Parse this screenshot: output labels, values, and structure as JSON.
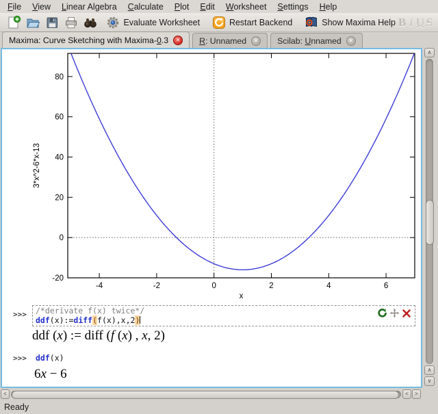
{
  "menu": {
    "items": [
      {
        "label": "File",
        "u": 0
      },
      {
        "label": "View",
        "u": 0
      },
      {
        "label": "Linear Algebra",
        "u": 0
      },
      {
        "label": "Calculate",
        "u": 0
      },
      {
        "label": "Plot",
        "u": 0
      },
      {
        "label": "Edit",
        "u": 0
      },
      {
        "label": "Worksheet",
        "u": 0
      },
      {
        "label": "Settings",
        "u": 0
      },
      {
        "label": "Help",
        "u": 0
      }
    ]
  },
  "toolbar": {
    "icon_buttons": [
      {
        "name": "new-worksheet-button",
        "icon": "new-document-icon"
      },
      {
        "name": "open-button",
        "icon": "open-folder-icon"
      },
      {
        "name": "save-button",
        "icon": "floppy-disk-icon"
      },
      {
        "name": "print-button",
        "icon": "printer-icon"
      },
      {
        "name": "find-button",
        "icon": "binoculars-icon"
      }
    ],
    "evaluate_label": "Evaluate Worksheet",
    "restart_label": "Restart Backend",
    "help_label": "Show Maxima Help",
    "format_buttons": [
      {
        "name": "bold-button",
        "label": "B"
      },
      {
        "name": "italic-button",
        "label": "i"
      },
      {
        "name": "underline-button",
        "label": "U"
      },
      {
        "name": "strikethrough-button",
        "label": "S"
      }
    ]
  },
  "tabs": [
    {
      "label": "Maxima: Curve Sketching with Maxima-0.3",
      "u": 36,
      "active": true
    },
    {
      "label": "R: Unnamed",
      "u": 0,
      "active": false
    },
    {
      "label": "Scilab: Unnamed",
      "u": 8,
      "active": false
    }
  ],
  "icons": {
    "close_glyph": "✕",
    "scroll_up": "∧",
    "scroll_down": "∨",
    "scroll_left": "<",
    "scroll_right": ">"
  },
  "worksheet": {
    "entry1": {
      "prompt": ">>>",
      "comment": "/*derivate f(x) twice*/",
      "code": [
        {
          "t": "ddf",
          "s": "kw"
        },
        {
          "t": "(x):=",
          "s": "pl"
        },
        {
          "t": "diff",
          "s": "kw"
        },
        {
          "t": "(",
          "s": "m"
        },
        {
          "t": "f(x),x,2",
          "s": "pl"
        },
        {
          "t": ")",
          "s": "m"
        }
      ]
    },
    "result1": [
      {
        "t": "ddf ("
      },
      {
        "t": "x",
        "i": 1
      },
      {
        "t": ") := diff ("
      },
      {
        "t": "f",
        "i": 1
      },
      {
        "t": " ("
      },
      {
        "t": "x",
        "i": 1
      },
      {
        "t": ") , "
      },
      {
        "t": "x",
        "i": 1
      },
      {
        "t": ", 2)"
      }
    ],
    "entry2": {
      "prompt": ">>>",
      "code": [
        {
          "t": "ddf",
          "s": "kw"
        },
        {
          "t": "(x)",
          "s": "pl"
        }
      ]
    },
    "result2": [
      {
        "t": "6"
      },
      {
        "t": "x",
        "i": 1
      },
      {
        "t": " − 6"
      }
    ]
  },
  "chart_data": {
    "type": "line",
    "title": "",
    "expression": "y = 3*x^2-6*x-13",
    "coeffs": [
      3,
      -6,
      -13
    ],
    "xlabel": "x",
    "ylabel": "3*x^2-6*x-13",
    "x_ticks": [
      -4,
      -2,
      0,
      2,
      4,
      6
    ],
    "y_ticks": [
      80,
      60,
      40,
      20,
      0,
      -20
    ],
    "xlim": [
      -5.1,
      7.0
    ],
    "ylim": [
      -20,
      91.5
    ],
    "zero_axes_dotted": true,
    "grid": false,
    "legend": "none",
    "line_color": "#3c3cd8"
  },
  "status": {
    "text": "Ready"
  }
}
